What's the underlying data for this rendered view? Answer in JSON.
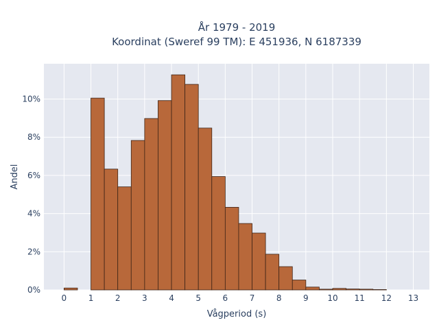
{
  "chart_data": {
    "type": "bar",
    "title_lines": [
      "År 1979 - 2019",
      "Koordinat (Sweref 99 TM): E 451936, N 6187339"
    ],
    "xlabel": "Vågperiod (s)",
    "ylabel": "Andel",
    "xlim": [
      -0.75,
      13.6
    ],
    "ylim": [
      0,
      0.1185
    ],
    "x_ticks": [
      0,
      1,
      2,
      3,
      4,
      5,
      6,
      7,
      8,
      9,
      10,
      11,
      12,
      13
    ],
    "y_ticks": [
      0,
      0.02,
      0.04,
      0.06,
      0.08,
      0.1
    ],
    "y_tick_labels": [
      "0%",
      "2%",
      "4%",
      "6%",
      "8%",
      "10%"
    ],
    "bin_width": 0.5,
    "bins": [
      {
        "x0": 0.0,
        "value": 0.001
      },
      {
        "x0": 1.0,
        "value": 0.1005
      },
      {
        "x0": 1.5,
        "value": 0.0633
      },
      {
        "x0": 2.0,
        "value": 0.054
      },
      {
        "x0": 2.5,
        "value": 0.0783
      },
      {
        "x0": 3.0,
        "value": 0.0898
      },
      {
        "x0": 3.5,
        "value": 0.0992
      },
      {
        "x0": 4.0,
        "value": 0.1127
      },
      {
        "x0": 4.5,
        "value": 0.1077
      },
      {
        "x0": 5.0,
        "value": 0.0848
      },
      {
        "x0": 5.5,
        "value": 0.0594
      },
      {
        "x0": 6.0,
        "value": 0.0433
      },
      {
        "x0": 6.5,
        "value": 0.0348
      },
      {
        "x0": 7.0,
        "value": 0.0298
      },
      {
        "x0": 7.5,
        "value": 0.0187
      },
      {
        "x0": 8.0,
        "value": 0.0122
      },
      {
        "x0": 8.5,
        "value": 0.0052
      },
      {
        "x0": 9.0,
        "value": 0.0015
      },
      {
        "x0": 9.5,
        "value": 0.0004
      },
      {
        "x0": 10.0,
        "value": 0.0008
      },
      {
        "x0": 10.5,
        "value": 0.0005
      },
      {
        "x0": 11.0,
        "value": 0.0004
      },
      {
        "x0": 11.5,
        "value": 0.0002
      }
    ],
    "grid": true,
    "colors": {
      "bar_fill": "#b8683a",
      "bar_stroke": "#3d2417",
      "plot_background": "#e5e8f0",
      "grid": "#ffffff"
    }
  }
}
